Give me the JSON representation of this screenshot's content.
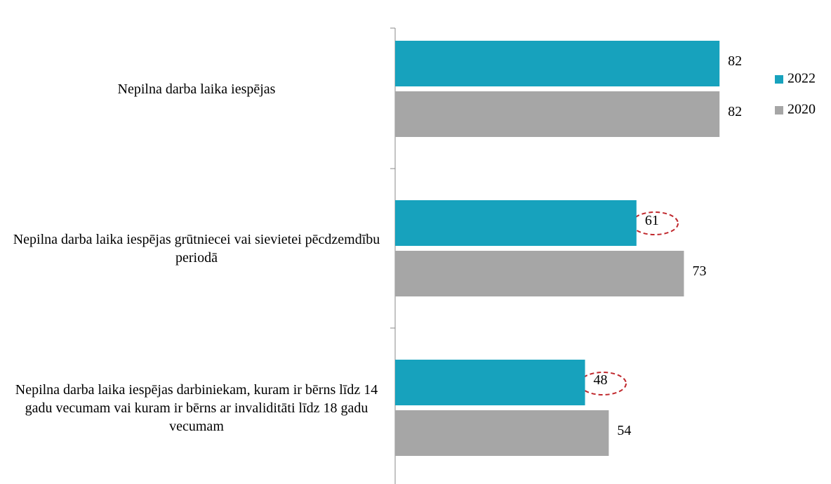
{
  "chart_data": {
    "type": "barh",
    "categories": [
      "Nepilna darba laika iespējas",
      "Nepilna darba laika iespējas grūtniecei vai sievietei pēcdzemdību periodā",
      "Nepilna darba laika iespējas darbiniekam, kuram ir bērns līdz 14 gadu vecumam vai kuram ir bērns ar invaliditāti līdz 18 gadu vecumam"
    ],
    "series": [
      {
        "name": "2022",
        "color": "#17a2bd",
        "values": [
          82,
          61,
          48
        ]
      },
      {
        "name": "2020",
        "color": "#a6a6a6",
        "values": [
          82,
          73,
          54
        ]
      }
    ],
    "xlim": [
      0,
      110
    ],
    "legend": "right"
  }
}
